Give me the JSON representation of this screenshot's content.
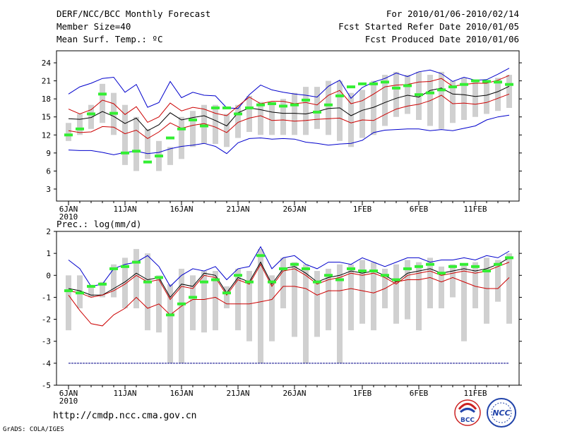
{
  "header": {
    "title": "DERF/NCC/BCC Monthly Forecast",
    "member_size": "Member Size=40",
    "variable": "Mean Surf. Temp.: ºC",
    "period": "For 2010/01/06-2010/02/14",
    "started": "Fcst Started Refer Date 2010/01/05",
    "produced": "Fcst Produced Date 2010/01/06"
  },
  "footer": {
    "url": "http://cmdp.ncc.cma.gov.cn",
    "credit": "GrADS: COLA/IGES",
    "logo_bcc": "BCC",
    "logo_ncc": "NCC"
  },
  "colors": {
    "max_line": "#0000cc",
    "mean_line": "#000000",
    "spread_line": "#cc0000",
    "box": "#d0d0d0",
    "obs": "#33ee33",
    "dash_line": "#000088"
  },
  "chart_data": [
    {
      "type": "line",
      "title": "Mean Surf. Temp.: ºC",
      "ylim": [
        1,
        26
      ],
      "yticks": [
        3,
        6,
        9,
        12,
        15,
        18,
        21,
        24
      ],
      "x_tick_labels": [
        "6JAN",
        "11JAN",
        "16JAN",
        "21JAN",
        "26JAN",
        "1FEB",
        "6FEB",
        "11FEB"
      ],
      "x_tick_days": [
        1,
        6,
        11,
        16,
        21,
        27,
        32,
        37
      ],
      "year_label": "2010",
      "days": [
        1,
        2,
        3,
        4,
        5,
        6,
        7,
        8,
        9,
        10,
        11,
        12,
        13,
        14,
        15,
        16,
        17,
        18,
        19,
        20,
        21,
        22,
        23,
        24,
        25,
        26,
        27,
        28,
        29,
        30,
        31,
        32,
        33,
        34,
        35,
        36,
        37,
        38,
        39,
        40
      ],
      "series": [
        {
          "name": "max",
          "color": "#0000cc",
          "values": [
            18.8,
            20,
            20.6,
            21.4,
            21.6,
            19.1,
            20.4,
            16.6,
            17.4,
            20.9,
            18.2,
            19.1,
            18.6,
            18.5,
            16.5,
            16.4,
            18.7,
            20.3,
            19.5,
            19.1,
            18.8,
            18.6,
            18.3,
            20.1,
            21.1,
            18.1,
            19.9,
            20.8,
            21.4,
            22.3,
            21.7,
            22.5,
            22.8,
            22.2,
            20.9,
            21.6,
            21.1,
            21.2,
            22.1,
            23.1
          ]
        },
        {
          "name": "upper",
          "color": "#cc0000",
          "values": [
            16.3,
            15.5,
            16.2,
            17.8,
            17.2,
            15.4,
            16.7,
            14.1,
            15,
            17.3,
            16,
            16.6,
            16.3,
            15.6,
            15.2,
            16.8,
            18.3,
            17.2,
            17.6,
            17.6,
            17.2,
            17.4,
            17,
            18.6,
            19.4,
            17.2,
            17.7,
            18.8,
            20,
            20.3,
            20.4,
            20.8,
            20.9,
            21.4,
            20.1,
            20.4,
            20.6,
            20.6,
            21.1,
            21.9
          ]
        },
        {
          "name": "mean",
          "color": "#000000",
          "values": [
            14.7,
            14.6,
            14.9,
            15.9,
            15.1,
            13.9,
            14.8,
            12.7,
            13.7,
            15.7,
            14.5,
            14.9,
            15.2,
            14.4,
            13.5,
            15.7,
            16.5,
            16.2,
            15.8,
            15.6,
            15.6,
            15.5,
            15.9,
            16.4,
            16.5,
            15.2,
            16.1,
            16.6,
            17.4,
            18.1,
            18.6,
            18.3,
            19.4,
            19.8,
            18.8,
            18.7,
            18.4,
            18.6,
            19.2,
            20.1
          ]
        },
        {
          "name": "lower",
          "color": "#cc0000",
          "values": [
            12.7,
            12.4,
            12.5,
            13.4,
            13.3,
            12.2,
            12.8,
            11.4,
            12.5,
            14,
            13.1,
            13.6,
            13.9,
            13.3,
            12.4,
            14.1,
            14.8,
            15.2,
            14.4,
            14.5,
            14.3,
            14.4,
            14.6,
            14.7,
            14.8,
            14,
            14.5,
            14.4,
            15.4,
            16.3,
            16.8,
            17.1,
            17.7,
            18.6,
            17.2,
            17.3,
            17.1,
            17.4,
            18.1,
            18.8
          ]
        },
        {
          "name": "min",
          "color": "#0000cc",
          "values": [
            9.5,
            9.4,
            9.4,
            9.1,
            8.7,
            9.1,
            9.3,
            8.9,
            9.1,
            9.7,
            10.1,
            10.3,
            10.6,
            10.1,
            8.9,
            10.7,
            11.4,
            11.5,
            11.3,
            11.4,
            11.3,
            10.8,
            10.6,
            10.3,
            10.5,
            10.6,
            11.1,
            12.4,
            12.8,
            12.9,
            13,
            13,
            12.7,
            12.9,
            12.7,
            13.1,
            13.5,
            14.5,
            15,
            15.3
          ]
        }
      ],
      "boxes": [
        [
          11,
          14
        ],
        [
          12,
          15.5
        ],
        [
          13,
          17
        ],
        [
          14,
          20.5
        ],
        [
          12,
          19
        ],
        [
          7,
          17
        ],
        [
          6,
          15
        ],
        [
          8,
          13
        ],
        [
          6,
          11
        ],
        [
          7,
          10
        ],
        [
          8,
          15
        ],
        [
          10,
          16
        ],
        [
          10.5,
          17
        ],
        [
          10.5,
          17
        ],
        [
          10,
          15.5
        ],
        [
          11.5,
          17
        ],
        [
          12.5,
          18.5
        ],
        [
          12,
          17.5
        ],
        [
          12,
          17.5
        ],
        [
          12,
          18
        ],
        [
          12,
          19
        ],
        [
          12,
          20
        ],
        [
          13,
          20
        ],
        [
          12,
          21
        ],
        [
          11,
          21
        ],
        [
          10,
          19
        ],
        [
          11.5,
          19.5
        ],
        [
          12,
          21
        ],
        [
          13.5,
          22
        ],
        [
          15,
          22.5
        ],
        [
          15.5,
          22
        ],
        [
          14.5,
          22.5
        ],
        [
          13.5,
          22
        ],
        [
          13,
          22.5
        ],
        [
          14,
          21
        ],
        [
          14.5,
          21.5
        ],
        [
          15,
          21
        ],
        [
          15.5,
          21
        ],
        [
          16,
          21.5
        ],
        [
          16.5,
          22
        ]
      ],
      "observed": [
        12,
        13,
        15.5,
        18.8,
        15.6,
        9,
        9.3,
        7.5,
        8.5,
        11.5,
        13,
        14.5,
        13.5,
        16.5,
        16.5,
        15.5,
        16.5,
        17,
        17.2,
        16.8,
        17,
        17.8,
        15.8,
        17,
        18.5,
        20,
        20.5,
        20.5,
        20.8,
        19.8,
        20.2,
        18.7,
        19,
        19.5,
        20,
        20.4,
        21,
        20.9,
        20.8,
        20.4
      ]
    },
    {
      "type": "line",
      "title": "Prec.: log(mm/d)",
      "ylim": [
        -5,
        2
      ],
      "yticks": [
        -5,
        -4,
        -3,
        -2,
        -1,
        0,
        1,
        2
      ],
      "x_tick_labels": [
        "6JAN",
        "11JAN",
        "16JAN",
        "21JAN",
        "26JAN",
        "1FEB",
        "6FEB",
        "11FEB"
      ],
      "x_tick_days": [
        1,
        6,
        11,
        16,
        21,
        27,
        32,
        37
      ],
      "year_label": "2010",
      "days": [
        1,
        2,
        3,
        4,
        5,
        6,
        7,
        8,
        9,
        10,
        11,
        12,
        13,
        14,
        15,
        16,
        17,
        18,
        19,
        20,
        21,
        22,
        23,
        24,
        25,
        26,
        27,
        28,
        29,
        30,
        31,
        32,
        33,
        34,
        35,
        36,
        37,
        38,
        39,
        40
      ],
      "series": [
        {
          "name": "max",
          "color": "#0000cc",
          "values": [
            0.7,
            0.3,
            -0.5,
            -0.4,
            0.3,
            0.5,
            0.6,
            0.9,
            0.4,
            -0.5,
            0,
            0.3,
            0.2,
            0.4,
            -0.2,
            0.3,
            0.4,
            1.3,
            0.3,
            0.8,
            0.9,
            0.5,
            0.3,
            0.6,
            0.6,
            0.5,
            0.8,
            0.6,
            0.4,
            0.6,
            0.8,
            0.8,
            0.6,
            0.7,
            0.7,
            0.8,
            0.7,
            0.9,
            0.8,
            1.1
          ]
        },
        {
          "name": "mean",
          "color": "#000000",
          "values": [
            -0.6,
            -0.7,
            -0.9,
            -0.9,
            -0.6,
            -0.3,
            0.1,
            -0.2,
            -0.1,
            -1,
            -0.4,
            -0.5,
            0.1,
            0,
            -0.8,
            -0.1,
            -0.3,
            0.6,
            -0.4,
            0.3,
            0.4,
            0.1,
            -0.3,
            -0.1,
            0,
            0.2,
            0.1,
            0.2,
            0,
            -0.3,
            0.1,
            0.2,
            0.3,
            0.1,
            0.2,
            0.3,
            0.2,
            0.3,
            0.5,
            0.8
          ]
        },
        {
          "name": "spread_mean",
          "color": "#cc0000",
          "values": [
            -0.7,
            -0.8,
            -1,
            -0.9,
            -0.7,
            -0.4,
            0,
            -0.3,
            -0.2,
            -1.1,
            -0.5,
            -0.6,
            0,
            -0.1,
            -0.9,
            -0.2,
            -0.4,
            0.5,
            -0.5,
            0.2,
            0.3,
            0,
            -0.4,
            -0.2,
            -0.1,
            0.1,
            0,
            0.1,
            -0.1,
            -0.4,
            0,
            0.1,
            0.2,
            0,
            0.1,
            0.2,
            0.1,
            0.2,
            0.4,
            0.6
          ]
        },
        {
          "name": "lower",
          "color": "#cc0000",
          "values": [
            -0.9,
            -1.6,
            -2.2,
            -2.3,
            -1.8,
            -1.5,
            -1,
            -1.5,
            -1.3,
            -1.8,
            -1.4,
            -1.1,
            -1.1,
            -1,
            -1.3,
            -1.3,
            -1.3,
            -1.2,
            -1.1,
            -0.5,
            -0.5,
            -0.6,
            -0.9,
            -0.7,
            -0.7,
            -0.6,
            -0.7,
            -0.8,
            -0.6,
            -0.3,
            -0.2,
            -0.2,
            -0.1,
            -0.3,
            -0.1,
            -0.3,
            -0.5,
            -0.6,
            -0.6,
            -0.1
          ]
        },
        {
          "name": "min_line",
          "color": "#000088",
          "values": [
            -4,
            -4,
            -4,
            -4,
            -4,
            -4,
            -4,
            -4,
            -4,
            -4,
            -4,
            -4,
            -4,
            -4,
            -4,
            -4,
            -4,
            -4,
            -4,
            -4,
            -4,
            -4,
            -4,
            -4,
            -4,
            -4,
            -4,
            -4,
            -4,
            -4,
            -4,
            -4,
            -4,
            -4,
            -4,
            -4,
            -4,
            -4,
            -4,
            -4
          ]
        }
      ],
      "boxes": [
        [
          -2.5,
          0
        ],
        [
          -1.5,
          0
        ],
        [
          -1,
          -0.5
        ],
        [
          -1,
          -0.3
        ],
        [
          -1,
          0.5
        ],
        [
          -1.5,
          0.8
        ],
        [
          -1.5,
          1.2
        ],
        [
          -2.5,
          1
        ],
        [
          -2.6,
          0
        ],
        [
          -4,
          -0.4
        ],
        [
          -4,
          0.3
        ],
        [
          -2.5,
          0
        ],
        [
          -2.6,
          0.2
        ],
        [
          -2.5,
          0.2
        ],
        [
          -1.5,
          -0.5
        ],
        [
          -2.5,
          0.3
        ],
        [
          -3,
          0.2
        ],
        [
          -4,
          1.2
        ],
        [
          -3,
          0
        ],
        [
          -1.5,
          0.8
        ],
        [
          -2.8,
          0.6
        ],
        [
          -4,
          0.5
        ],
        [
          -2.8,
          0.2
        ],
        [
          -2.5,
          0.3
        ],
        [
          -4,
          0.5
        ],
        [
          -2.5,
          0.5
        ],
        [
          -2.2,
          0.7
        ],
        [
          -2.5,
          0.6
        ],
        [
          -1.5,
          0.3
        ],
        [
          -2.2,
          0.5
        ],
        [
          -2,
          0.7
        ],
        [
          -2.5,
          0.6
        ],
        [
          -1.5,
          0.8
        ],
        [
          -1.5,
          0.4
        ],
        [
          -1,
          0.5
        ],
        [
          -3,
          0.5
        ],
        [
          -1.5,
          0.6
        ],
        [
          -2.2,
          0.8
        ],
        [
          -1.2,
          0.7
        ],
        [
          -2.2,
          1
        ]
      ],
      "observed": [
        -0.7,
        -0.8,
        -0.5,
        -0.4,
        0.3,
        0.4,
        0.6,
        -0.3,
        -0.1,
        -1.8,
        -1.3,
        -1,
        -0.3,
        -0.2,
        -0.8,
        0,
        -0.3,
        0.9,
        -0.3,
        0.3,
        0.5,
        0.3,
        -0.3,
        0,
        -0.2,
        0.3,
        0.2,
        0.2,
        0,
        -0.2,
        0.3,
        0.4,
        0.5,
        0.1,
        0.4,
        0.5,
        0.4,
        0.2,
        0.5,
        0.8
      ]
    }
  ]
}
